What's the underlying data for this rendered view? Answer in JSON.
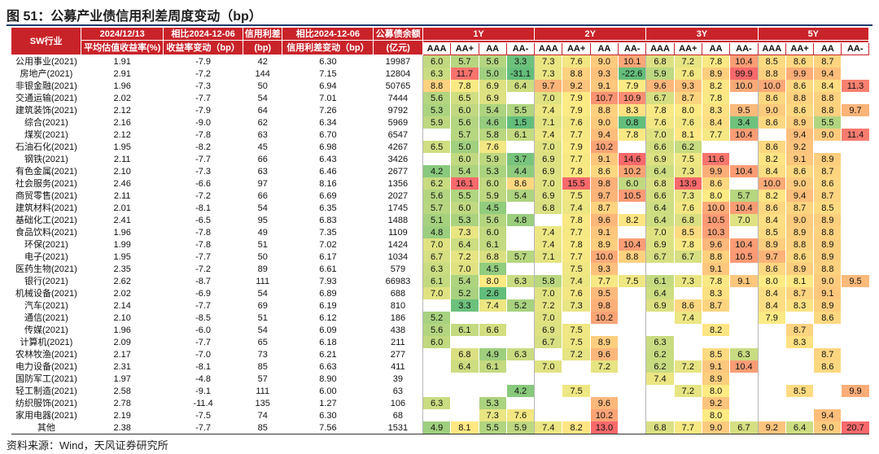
{
  "title": "图 51：公募产业债信用利差周度变动（bp）",
  "source": "资料来源：Wind，天风证券研究所",
  "headers": {
    "industry": "SW行业",
    "date": "2024/12/13",
    "date_sub": "平均估值收益率(%)",
    "chg_yield": "相比2024-12-06",
    "chg_yield_sub": "收益率变动（bp）",
    "spread": "信用利差",
    "spread_sub": "(bp)",
    "chg_spread": "相比2024-12-06",
    "chg_spread_sub": "信用利差变动（bp）",
    "balance": "公募债余额",
    "balance_sub": "(亿元)",
    "tenors": [
      "1Y",
      "2Y",
      "3Y",
      "5Y"
    ],
    "ratings": [
      "AAA",
      "AA+",
      "AA",
      "AA-"
    ]
  },
  "rows": [
    {
      "name": "公用事业(2021)",
      "yield": "1.91",
      "dy": "-7.9",
      "spread": "42",
      "ds": "6.30",
      "bal": "19987",
      "h": [
        "6.0",
        "5.7",
        "5.6",
        "3.3",
        "7.3",
        "7.6",
        "9.0",
        "10.1",
        "6.8",
        "7.2",
        "7.8",
        "10.4",
        "8.5",
        "8.6",
        "8.7",
        ""
      ]
    },
    {
      "name": "房地产(2021)",
      "yield": "2.91",
      "dy": "-7.2",
      "spread": "144",
      "ds": "7.15",
      "bal": "12804",
      "h": [
        "6.3",
        "11.7",
        "5.0",
        "-31.1",
        "7.3",
        "8.8",
        "9.3",
        "-22.6",
        "5.9",
        "7.6",
        "8.9",
        "99.9",
        "8.8",
        "9.9",
        "9.4",
        ""
      ]
    },
    {
      "name": "非银金融(2021)",
      "yield": "1.96",
      "dy": "-7.3",
      "spread": "50",
      "ds": "6.94",
      "bal": "50765",
      "h": [
        "8.8",
        "7.8",
        "6.9",
        "6.4",
        "9.7",
        "9.2",
        "9.1",
        "7.9",
        "9.6",
        "9.3",
        "8.2",
        "10.0",
        "10.0",
        "8.6",
        "8.4",
        "11.3"
      ]
    },
    {
      "name": "交通运输(2021)",
      "yield": "2.02",
      "dy": "-7.7",
      "spread": "54",
      "ds": "7.01",
      "bal": "7444",
      "h": [
        "5.6",
        "6.5",
        "6.9",
        "",
        "7.0",
        "7.9",
        "10.7",
        "10.9",
        "6.7",
        "8.7",
        "7.8",
        "",
        "8.6",
        "8.8",
        "8.8",
        ""
      ]
    },
    {
      "name": "建筑装饰(2021)",
      "yield": "2.12",
      "dy": "-7.9",
      "spread": "64",
      "ds": "7.26",
      "bal": "9792",
      "h": [
        "5.3",
        "6.0",
        "5.4",
        "5.5",
        "7.4",
        "7.9",
        "8.8",
        "8.3",
        "7.8",
        "8.0",
        "8.3",
        "9.5",
        "9.0",
        "8.6",
        "8.8",
        "9.7"
      ]
    },
    {
      "name": "综合(2021)",
      "yield": "2.16",
      "dy": "-9.0",
      "spread": "62",
      "ds": "6.34",
      "bal": "5969",
      "h": [
        "5.9",
        "5.6",
        "4.6",
        "1.5",
        "7.1",
        "7.6",
        "9.0",
        "0.8",
        "7.6",
        "7.6",
        "8.4",
        "3.4",
        "8.6",
        "8.9",
        "5.5",
        ""
      ]
    },
    {
      "name": "煤炭(2021)",
      "yield": "2.12",
      "dy": "-7.8",
      "spread": "63",
      "ds": "6.70",
      "bal": "6547",
      "h": [
        "",
        "5.7",
        "5.8",
        "6.1",
        "7.4",
        "7.7",
        "9.4",
        "7.8",
        "7.0",
        "8.1",
        "7.7",
        "10.4",
        "",
        "9.4",
        "9.0",
        "11.4"
      ]
    },
    {
      "name": "石油石化(2021)",
      "yield": "1.95",
      "dy": "-8.2",
      "spread": "45",
      "ds": "6.98",
      "bal": "4267",
      "h": [
        "6.5",
        "5.0",
        "7.6",
        "",
        "7.0",
        "7.9",
        "10.2",
        "",
        "6.6",
        "6.2",
        "",
        "",
        "8.6",
        "9.2",
        "",
        ""
      ]
    },
    {
      "name": "钢铁(2021)",
      "yield": "2.11",
      "dy": "-7.7",
      "spread": "66",
      "ds": "6.43",
      "bal": "3426",
      "h": [
        "",
        "6.0",
        "5.9",
        "3.7",
        "6.9",
        "7.7",
        "9.1",
        "14.6",
        "6.9",
        "7.5",
        "11.6",
        "",
        "8.2",
        "9.1",
        "8.9",
        ""
      ]
    },
    {
      "name": "有色金属(2021)",
      "yield": "2.10",
      "dy": "-7.3",
      "spread": "63",
      "ds": "6.46",
      "bal": "2677",
      "h": [
        "4.2",
        "5.4",
        "5.3",
        "4.4",
        "6.9",
        "7.8",
        "8.6",
        "10.2",
        "6.4",
        "7.3",
        "9.9",
        "10.4",
        "8.4",
        "8.6",
        "8.7",
        ""
      ]
    },
    {
      "name": "社会服务(2021)",
      "yield": "2.46",
      "dy": "-6.6",
      "spread": "97",
      "ds": "8.16",
      "bal": "1356",
      "h": [
        "6.2",
        "16.1",
        "6.0",
        "8.6",
        "7.0",
        "15.5",
        "9.8",
        "6.0",
        "6.8",
        "13.9",
        "8.6",
        "",
        "10.0",
        "9.0",
        "8.6",
        ""
      ]
    },
    {
      "name": "商贸零售(2021)",
      "yield": "2.11",
      "dy": "-7.2",
      "spread": "66",
      "ds": "6.69",
      "bal": "2027",
      "h": [
        "5.6",
        "5.5",
        "5.9",
        "5.4",
        "6.9",
        "7.5",
        "9.7",
        "10.5",
        "6.6",
        "7.3",
        "8.0",
        "5.7",
        "8.2",
        "9.4",
        "8.7",
        ""
      ]
    },
    {
      "name": "建筑材料(2021)",
      "yield": "2.01",
      "dy": "-8.1",
      "spread": "54",
      "ds": "6.35",
      "bal": "1745",
      "h": [
        "5.7",
        "6.0",
        "4.5",
        "",
        "6.8",
        "7.4",
        "8.7",
        "",
        "6.4",
        "7.6",
        "10.0",
        "10.4",
        "8.6",
        "8.7",
        "8.5",
        ""
      ]
    },
    {
      "name": "基础化工(2021)",
      "yield": "2.41",
      "dy": "-6.5",
      "spread": "95",
      "ds": "6.83",
      "bal": "1488",
      "h": [
        "5.1",
        "5.3",
        "5.6",
        "4.8",
        "",
        "7.8",
        "9.6",
        "8.2",
        "6.4",
        "6.8",
        "10.5",
        "7.0",
        "8.4",
        "9.0",
        "8.9",
        ""
      ]
    },
    {
      "name": "食品饮料(2021)",
      "yield": "1.96",
      "dy": "-7.8",
      "spread": "49",
      "ds": "7.35",
      "bal": "1109",
      "h": [
        "4.8",
        "7.3",
        "6.0",
        "",
        "7.4",
        "7.7",
        "9.1",
        "",
        "7.0",
        "8.5",
        "10.3",
        "",
        "8.5",
        "8.9",
        "8.8",
        ""
      ]
    },
    {
      "name": "环保(2021)",
      "yield": "1.99",
      "dy": "-7.8",
      "spread": "51",
      "ds": "7.02",
      "bal": "1424",
      "h": [
        "7.0",
        "6.4",
        "6.1",
        "",
        "7.4",
        "7.8",
        "8.9",
        "10.4",
        "6.9",
        "7.8",
        "9.6",
        "10.4",
        "8.9",
        "8.8",
        "8.9",
        ""
      ]
    },
    {
      "name": "电子(2021)",
      "yield": "1.95",
      "dy": "-7.7",
      "spread": "50",
      "ds": "6.17",
      "bal": "1034",
      "h": [
        "6.7",
        "7.2",
        "6.8",
        "5.7",
        "7.1",
        "7.7",
        "10.0",
        "8.8",
        "6.7",
        "6.7",
        "8.8",
        "10.5",
        "9.7",
        "8.6",
        "8.9",
        ""
      ]
    },
    {
      "name": "医药生物(2021)",
      "yield": "2.35",
      "dy": "-7.2",
      "spread": "89",
      "ds": "6.61",
      "bal": "579",
      "h": [
        "6.3",
        "7.0",
        "4.5",
        "",
        "",
        "7.5",
        "9.3",
        "",
        "",
        "",
        "9.1",
        "",
        "8.6",
        "8.9",
        "8.8",
        ""
      ]
    },
    {
      "name": "银行(2021)",
      "yield": "2.62",
      "dy": "-8.7",
      "spread": "111",
      "ds": "7.93",
      "bal": "66983",
      "h": [
        "6.1",
        "5.4",
        "8.0",
        "6.3",
        "5.8",
        "7.4",
        "7.7",
        "7.5",
        "6.1",
        "7.3",
        "7.8",
        "9.1",
        "8.0",
        "8.1",
        "9.0",
        "9.5"
      ]
    },
    {
      "name": "机械设备(2021)",
      "yield": "2.02",
      "dy": "-6.9",
      "spread": "54",
      "ds": "6.89",
      "bal": "688",
      "h": [
        "7.0",
        "5.2",
        "2.6",
        "",
        "7.0",
        "7.6",
        "9.5",
        "",
        "6.4",
        "",
        "8.3",
        "",
        "8.4",
        "8.7",
        "9.1",
        ""
      ]
    },
    {
      "name": "汽车(2021)",
      "yield": "2.14",
      "dy": "-7.7",
      "spread": "69",
      "ds": "6.19",
      "bal": "810",
      "h": [
        "",
        "3.3",
        "7.4",
        "5.2",
        "7.2",
        "7.3",
        "9.8",
        "",
        "6.9",
        "8.6",
        "8.7",
        "",
        "8.4",
        "8.3",
        "8.9",
        ""
      ]
    },
    {
      "name": "通信(2021)",
      "yield": "2.10",
      "dy": "-8.5",
      "spread": "51",
      "ds": "6.12",
      "bal": "186",
      "h": [
        "5.2",
        "",
        "",
        "",
        "7.0",
        "",
        "10.2",
        "",
        "",
        "7.4",
        "",
        "",
        "7.9",
        "",
        "8.6",
        ""
      ]
    },
    {
      "name": "传媒(2021)",
      "yield": "1.96",
      "dy": "-6.0",
      "spread": "54",
      "ds": "6.09",
      "bal": "438",
      "h": [
        "5.6",
        "6.1",
        "6.6",
        "",
        "6.9",
        "7.5",
        "",
        "",
        "",
        "",
        "8.2",
        "",
        "",
        "8.7",
        "",
        ""
      ]
    },
    {
      "name": "计算机(2021)",
      "yield": "2.09",
      "dy": "-7.7",
      "spread": "65",
      "ds": "6.18",
      "bal": "211",
      "h": [
        "6.0",
        "",
        "",
        "",
        "6.7",
        "7.5",
        "8.9",
        "",
        "6.3",
        "",
        "",
        "",
        "",
        "8.3",
        "",
        ""
      ]
    },
    {
      "name": "农林牧渔(2021)",
      "yield": "2.17",
      "dy": "-7.0",
      "spread": "73",
      "ds": "6.21",
      "bal": "277",
      "h": [
        "",
        "6.8",
        "4.9",
        "6.3",
        "",
        "7.2",
        "9.6",
        "",
        "6.2",
        "",
        "8.5",
        "6.3",
        "",
        "",
        "8.7",
        ""
      ]
    },
    {
      "name": "电力设备(2021)",
      "yield": "2.31",
      "dy": "-8.1",
      "spread": "85",
      "ds": "6.63",
      "bal": "411",
      "h": [
        "",
        "6.4",
        "6.1",
        "",
        "7.0",
        "",
        "7.2",
        "",
        "6.2",
        "7.2",
        "9.1",
        "10.4",
        "",
        "",
        "8.6",
        ""
      ]
    },
    {
      "name": "国防军工(2021)",
      "yield": "1.97",
      "dy": "-4.8",
      "spread": "57",
      "ds": "8.90",
      "bal": "39",
      "h": [
        "",
        "",
        "",
        "",
        "",
        "",
        "",
        "",
        "7.4",
        "",
        "8.9",
        "",
        "",
        "",
        "",
        ""
      ]
    },
    {
      "name": "轻工制造(2021)",
      "yield": "2.58",
      "dy": "-9.1",
      "spread": "111",
      "ds": "6.00",
      "bal": "63",
      "h": [
        "",
        "",
        "",
        "4.2",
        "",
        "7.5",
        "",
        "",
        "",
        "7.2",
        "8.0",
        "",
        "",
        "8.5",
        "",
        "9.9"
      ]
    },
    {
      "name": "纺织服饰(2021)",
      "yield": "2.78",
      "dy": "-11.4",
      "spread": "135",
      "ds": "1.27",
      "bal": "106",
      "h": [
        "6.3",
        "",
        "5.3",
        "",
        "",
        "",
        "9.6",
        "",
        "",
        "",
        "9.2",
        "",
        "",
        "",
        "",
        ""
      ]
    },
    {
      "name": "家用电器(2021)",
      "yield": "2.19",
      "dy": "-7.5",
      "spread": "74",
      "ds": "6.30",
      "bal": "68",
      "h": [
        "",
        "",
        "7.3",
        "7.6",
        "",
        "",
        "10.2",
        "",
        "",
        "",
        "8.0",
        "",
        "",
        "",
        "9.4",
        ""
      ]
    },
    {
      "name": "其他",
      "yield": "2.38",
      "dy": "-7.7",
      "spread": "85",
      "ds": "7.56",
      "bal": "1531",
      "h": [
        "4.9",
        "8.1",
        "5.5",
        "5.9",
        "7.4",
        "8.2",
        "13.0",
        "",
        "6.8",
        "7.7",
        "9.0",
        "6.7",
        "9.2",
        "6.4",
        "9.0",
        "20.7"
      ]
    }
  ],
  "colors": {
    "header_red": "#c9232a",
    "low": "#63be7b",
    "mid": "#ffeb84",
    "high": "#f8696b"
  },
  "heat_scale": {
    "min": 3.0,
    "mid": 8.0,
    "max": 12.0
  }
}
